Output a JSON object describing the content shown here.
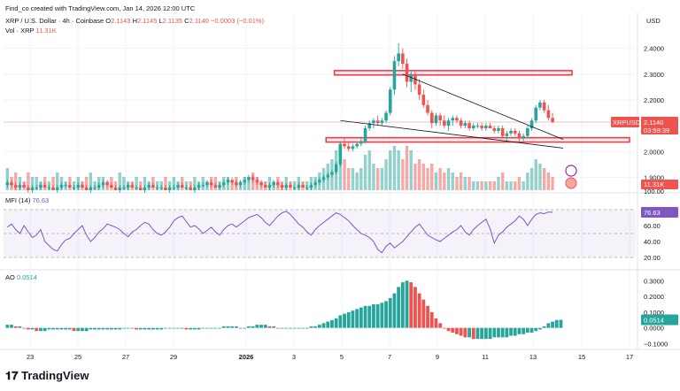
{
  "header": {
    "created_by": "Find_co created with TradingView.com, Jan 14, 2026 12:00 UTC",
    "symbol": "XRP / U.S. Dollar · 4h · Coinbase",
    "ohlc_o_label": "O",
    "ohlc_o": "2.1143",
    "ohlc_h_label": "H",
    "ohlc_h": "2.1145",
    "ohlc_l_label": "L",
    "ohlc_l": "2.1135",
    "ohlc_c_label": "C",
    "ohlc_c": "2.1140",
    "change": "−0.0003 (−0.01%)",
    "vol_label": "Vol · XRP",
    "vol_value": "11.31K",
    "currency": "USD"
  },
  "price_tag": {
    "symbol": "XRPUSD",
    "price": "2.1140",
    "countdown": "03:59:39"
  },
  "volume_tag": "11.31K",
  "volume_scale_label": "100.00",
  "mfi": {
    "label": "MFI (14)",
    "value": "76.63",
    "ticks": [
      "60.00",
      "40.00",
      "20.00"
    ]
  },
  "ao": {
    "label": "AO",
    "value": "0.0514",
    "ticks": [
      "0.3000",
      "0.2000",
      "0.1000",
      "0.0000",
      "−0.1000"
    ]
  },
  "price_ticks": [
    "2.4000",
    "2.3000",
    "2.2000",
    "2.1000",
    "2.0000",
    "1.9000"
  ],
  "x_ticks": [
    "23",
    "25",
    "27",
    "29",
    "2026",
    "3",
    "5",
    "7",
    "9",
    "11",
    "13",
    "15",
    "17"
  ],
  "brand": "TradingView",
  "colors": {
    "up": "#26a69a",
    "down": "#ef5350",
    "mfi_line": "#7e57c2",
    "zone": "#f23645"
  },
  "chart_data": {
    "type": "candlestick",
    "symbol": "XRPUSD",
    "timeframe": "4h",
    "x_start": "Dec 22",
    "ylim": [
      1.85,
      2.45
    ],
    "candles_ohlc": [
      [
        1.87,
        1.89,
        1.86,
        1.88
      ],
      [
        1.88,
        1.89,
        1.86,
        1.87
      ],
      [
        1.87,
        1.88,
        1.85,
        1.86
      ],
      [
        1.86,
        1.88,
        1.85,
        1.87
      ],
      [
        1.87,
        1.88,
        1.86,
        1.86
      ],
      [
        1.86,
        1.87,
        1.84,
        1.85
      ],
      [
        1.85,
        1.87,
        1.84,
        1.86
      ],
      [
        1.86,
        1.87,
        1.85,
        1.86
      ],
      [
        1.86,
        1.88,
        1.85,
        1.87
      ],
      [
        1.87,
        1.88,
        1.86,
        1.86
      ],
      [
        1.86,
        1.87,
        1.85,
        1.86
      ],
      [
        1.86,
        1.87,
        1.85,
        1.85
      ],
      [
        1.85,
        1.87,
        1.84,
        1.86
      ],
      [
        1.86,
        1.88,
        1.85,
        1.87
      ],
      [
        1.87,
        1.88,
        1.86,
        1.87
      ],
      [
        1.87,
        1.88,
        1.86,
        1.86
      ],
      [
        1.86,
        1.87,
        1.85,
        1.86
      ],
      [
        1.86,
        1.88,
        1.85,
        1.87
      ],
      [
        1.87,
        1.88,
        1.86,
        1.86
      ],
      [
        1.86,
        1.87,
        1.85,
        1.85
      ],
      [
        1.85,
        1.87,
        1.84,
        1.86
      ],
      [
        1.86,
        1.87,
        1.85,
        1.86
      ],
      [
        1.86,
        1.88,
        1.85,
        1.87
      ],
      [
        1.87,
        1.89,
        1.86,
        1.88
      ],
      [
        1.88,
        1.89,
        1.86,
        1.87
      ],
      [
        1.87,
        1.88,
        1.86,
        1.86
      ],
      [
        1.86,
        1.87,
        1.85,
        1.85
      ],
      [
        1.85,
        1.87,
        1.84,
        1.86
      ],
      [
        1.86,
        1.87,
        1.85,
        1.86
      ],
      [
        1.86,
        1.88,
        1.85,
        1.87
      ],
      [
        1.87,
        1.88,
        1.86,
        1.86
      ],
      [
        1.86,
        1.87,
        1.85,
        1.86
      ],
      [
        1.86,
        1.87,
        1.85,
        1.85
      ],
      [
        1.85,
        1.87,
        1.84,
        1.86
      ],
      [
        1.86,
        1.88,
        1.85,
        1.87
      ],
      [
        1.87,
        1.88,
        1.86,
        1.86
      ],
      [
        1.86,
        1.87,
        1.85,
        1.86
      ],
      [
        1.86,
        1.87,
        1.85,
        1.86
      ],
      [
        1.86,
        1.87,
        1.85,
        1.85
      ],
      [
        1.85,
        1.87,
        1.84,
        1.86
      ],
      [
        1.86,
        1.87,
        1.85,
        1.86
      ],
      [
        1.86,
        1.88,
        1.85,
        1.87
      ],
      [
        1.87,
        1.88,
        1.86,
        1.86
      ],
      [
        1.86,
        1.87,
        1.85,
        1.86
      ],
      [
        1.86,
        1.87,
        1.85,
        1.85
      ],
      [
        1.85,
        1.87,
        1.84,
        1.86
      ],
      [
        1.86,
        1.88,
        1.85,
        1.87
      ],
      [
        1.87,
        1.88,
        1.86,
        1.87
      ],
      [
        1.87,
        1.89,
        1.86,
        1.88
      ],
      [
        1.88,
        1.89,
        1.86,
        1.87
      ],
      [
        1.87,
        1.88,
        1.86,
        1.86
      ],
      [
        1.86,
        1.88,
        1.85,
        1.87
      ],
      [
        1.87,
        1.89,
        1.86,
        1.88
      ],
      [
        1.88,
        1.9,
        1.87,
        1.89
      ],
      [
        1.89,
        1.9,
        1.87,
        1.88
      ],
      [
        1.88,
        1.89,
        1.86,
        1.87
      ],
      [
        1.87,
        1.89,
        1.86,
        1.88
      ],
      [
        1.88,
        1.9,
        1.87,
        1.89
      ],
      [
        1.89,
        1.91,
        1.88,
        1.9
      ],
      [
        1.9,
        1.91,
        1.88,
        1.89
      ],
      [
        1.89,
        1.9,
        1.87,
        1.88
      ],
      [
        1.88,
        1.89,
        1.86,
        1.87
      ],
      [
        1.87,
        1.88,
        1.86,
        1.86
      ],
      [
        1.86,
        1.88,
        1.85,
        1.87
      ],
      [
        1.87,
        1.89,
        1.86,
        1.88
      ],
      [
        1.88,
        1.89,
        1.86,
        1.87
      ],
      [
        1.87,
        1.88,
        1.85,
        1.86
      ],
      [
        1.86,
        1.88,
        1.85,
        1.87
      ],
      [
        1.87,
        1.88,
        1.86,
        1.86
      ],
      [
        1.86,
        1.87,
        1.85,
        1.86
      ],
      [
        1.86,
        1.88,
        1.85,
        1.87
      ],
      [
        1.87,
        1.88,
        1.86,
        1.86
      ],
      [
        1.86,
        1.87,
        1.85,
        1.86
      ],
      [
        1.86,
        1.88,
        1.85,
        1.87
      ],
      [
        1.87,
        1.89,
        1.86,
        1.88
      ],
      [
        1.88,
        1.9,
        1.87,
        1.89
      ],
      [
        1.89,
        1.91,
        1.88,
        1.9
      ],
      [
        1.9,
        1.92,
        1.89,
        1.91
      ],
      [
        1.91,
        1.93,
        1.9,
        1.92
      ],
      [
        1.92,
        1.96,
        1.91,
        1.95
      ],
      [
        1.95,
        2.04,
        1.94,
        2.03
      ],
      [
        2.03,
        2.05,
        2.01,
        2.02
      ],
      [
        2.02,
        2.04,
        2.0,
        2.01
      ],
      [
        2.01,
        2.03,
        2.0,
        2.02
      ],
      [
        2.02,
        2.04,
        2.01,
        2.03
      ],
      [
        2.03,
        2.05,
        2.02,
        2.04
      ],
      [
        2.04,
        2.1,
        2.03,
        2.09
      ],
      [
        2.09,
        2.12,
        2.08,
        2.11
      ],
      [
        2.11,
        2.13,
        2.09,
        2.12
      ],
      [
        2.12,
        2.14,
        2.1,
        2.11
      ],
      [
        2.11,
        2.13,
        2.1,
        2.12
      ],
      [
        2.12,
        2.16,
        2.11,
        2.15
      ],
      [
        2.15,
        2.25,
        2.14,
        2.24
      ],
      [
        2.24,
        2.37,
        2.22,
        2.35
      ],
      [
        2.35,
        2.42,
        2.33,
        2.38
      ],
      [
        2.38,
        2.4,
        2.32,
        2.34
      ],
      [
        2.34,
        2.36,
        2.25,
        2.27
      ],
      [
        2.27,
        2.31,
        2.23,
        2.3
      ],
      [
        2.3,
        2.31,
        2.24,
        2.26
      ],
      [
        2.26,
        2.28,
        2.2,
        2.22
      ],
      [
        2.22,
        2.24,
        2.17,
        2.18
      ],
      [
        2.18,
        2.2,
        2.14,
        2.15
      ],
      [
        2.15,
        2.16,
        2.09,
        2.11
      ],
      [
        2.11,
        2.15,
        2.1,
        2.14
      ],
      [
        2.14,
        2.15,
        2.1,
        2.12
      ],
      [
        2.12,
        2.14,
        2.09,
        2.1
      ],
      [
        2.1,
        2.13,
        2.08,
        2.12
      ],
      [
        2.12,
        2.14,
        2.1,
        2.13
      ],
      [
        2.13,
        2.14,
        2.11,
        2.12
      ],
      [
        2.12,
        2.13,
        2.09,
        2.1
      ],
      [
        2.1,
        2.12,
        2.09,
        2.11
      ],
      [
        2.11,
        2.12,
        2.08,
        2.09
      ],
      [
        2.09,
        2.11,
        2.08,
        2.1
      ],
      [
        2.1,
        2.11,
        2.09,
        2.1
      ],
      [
        2.1,
        2.11,
        2.08,
        2.09
      ],
      [
        2.09,
        2.11,
        2.08,
        2.1
      ],
      [
        2.1,
        2.11,
        2.09,
        2.09
      ],
      [
        2.09,
        2.1,
        2.07,
        2.08
      ],
      [
        2.08,
        2.1,
        2.07,
        2.09
      ],
      [
        2.09,
        2.1,
        2.05,
        2.06
      ],
      [
        2.06,
        2.08,
        2.04,
        2.07
      ],
      [
        2.07,
        2.09,
        2.06,
        2.08
      ],
      [
        2.08,
        2.09,
        2.06,
        2.07
      ],
      [
        2.07,
        2.08,
        2.04,
        2.05
      ],
      [
        2.05,
        2.07,
        2.04,
        2.06
      ],
      [
        2.06,
        2.1,
        2.05,
        2.09
      ],
      [
        2.09,
        2.13,
        2.08,
        2.12
      ],
      [
        2.12,
        2.18,
        2.11,
        2.17
      ],
      [
        2.17,
        2.2,
        2.16,
        2.19
      ],
      [
        2.19,
        2.2,
        2.15,
        2.16
      ],
      [
        2.16,
        2.18,
        2.12,
        2.13
      ],
      [
        2.13,
        2.15,
        2.11,
        2.114
      ]
    ],
    "volume": [
      0.5,
      0.3,
      0.4,
      0.3,
      0.2,
      0.4,
      0.3,
      0.3,
      0.2,
      0.3,
      0.2,
      0.3,
      0.4,
      0.3,
      0.2,
      0.3,
      0.2,
      0.3,
      0.2,
      0.3,
      0.4,
      0.2,
      0.3,
      0.3,
      0.2,
      0.3,
      0.2,
      0.4,
      0.3,
      0.2,
      0.2,
      0.3,
      0.2,
      0.3,
      0.2,
      0.3,
      0.2,
      0.2,
      0.3,
      0.2,
      0.3,
      0.2,
      0.3,
      0.2,
      0.2,
      0.3,
      0.2,
      0.3,
      0.2,
      0.3,
      0.3,
      0.2,
      0.3,
      0.3,
      0.2,
      0.3,
      0.2,
      0.3,
      0.3,
      0.4,
      0.3,
      0.2,
      0.2,
      0.3,
      0.2,
      0.3,
      0.2,
      0.3,
      0.2,
      0.2,
      0.3,
      0.2,
      0.2,
      0.3,
      0.3,
      0.4,
      0.5,
      0.6,
      0.7,
      0.9,
      1.0,
      0.7,
      0.5,
      0.5,
      0.4,
      0.5,
      0.8,
      0.9,
      0.6,
      0.5,
      0.5,
      0.7,
      0.9,
      1.0,
      0.9,
      0.7,
      1.0,
      0.9,
      0.6,
      0.7,
      0.6,
      0.5,
      0.6,
      0.4,
      0.5,
      0.4,
      0.5,
      0.4,
      0.3,
      0.4,
      0.3,
      0.3,
      0.2,
      0.2,
      0.2,
      0.2,
      0.2,
      0.2,
      0.3,
      0.4,
      0.2,
      0.2,
      0.2,
      0.3,
      0.2,
      0.4,
      0.5,
      0.7,
      0.6,
      0.5,
      0.4,
      0.3
    ],
    "mfi": [
      58,
      62,
      55,
      50,
      60,
      52,
      45,
      48,
      55,
      40,
      35,
      30,
      28,
      36,
      42,
      44,
      50,
      55,
      60,
      48,
      40,
      45,
      52,
      56,
      62,
      60,
      58,
      55,
      50,
      46,
      52,
      55,
      60,
      64,
      62,
      55,
      50,
      48,
      52,
      58,
      66,
      70,
      72,
      65,
      58,
      60,
      56,
      50,
      54,
      58,
      52,
      48,
      55,
      60,
      62,
      58,
      62,
      66,
      70,
      72,
      74,
      70,
      64,
      60,
      66,
      72,
      76,
      78,
      74,
      68,
      62,
      58,
      52,
      48,
      55,
      60,
      64,
      68,
      72,
      76,
      74,
      70,
      66,
      60,
      55,
      50,
      48,
      45,
      40,
      30,
      26,
      34,
      38,
      32,
      36,
      40,
      46,
      52,
      58,
      62,
      55,
      48,
      45,
      42,
      40,
      44,
      48,
      52,
      55,
      60,
      52,
      48,
      55,
      60,
      64,
      68,
      56,
      38,
      48,
      52,
      58,
      62,
      66,
      72,
      68,
      60,
      68,
      74,
      76,
      75,
      77,
      76.63
    ],
    "ao": [
      0.02,
      0.02,
      0.01,
      0.01,
      0.0,
      -0.01,
      -0.01,
      -0.02,
      -0.02,
      -0.02,
      -0.01,
      -0.01,
      -0.01,
      -0.01,
      -0.01,
      -0.01,
      -0.02,
      -0.02,
      -0.02,
      -0.02,
      -0.01,
      -0.01,
      -0.01,
      -0.01,
      -0.01,
      -0.01,
      -0.01,
      -0.01,
      0.0,
      0.0,
      0.0,
      -0.01,
      -0.01,
      -0.01,
      -0.01,
      -0.01,
      -0.01,
      -0.01,
      0.0,
      0.0,
      0.0,
      0.0,
      0.0,
      -0.01,
      -0.01,
      -0.01,
      -0.01,
      0.0,
      0.0,
      0.0,
      0.0,
      0.0,
      0.01,
      0.01,
      0.01,
      0.01,
      0.0,
      0.0,
      0.01,
      0.01,
      0.02,
      0.02,
      0.02,
      0.01,
      0.01,
      0.0,
      0.0,
      0.0,
      0.0,
      0.0,
      0.0,
      0.0,
      0.0,
      0.01,
      0.01,
      0.02,
      0.03,
      0.04,
      0.05,
      0.06,
      0.08,
      0.09,
      0.1,
      0.11,
      0.12,
      0.13,
      0.14,
      0.14,
      0.15,
      0.15,
      0.16,
      0.17,
      0.19,
      0.22,
      0.26,
      0.29,
      0.3,
      0.29,
      0.26,
      0.22,
      0.18,
      0.14,
      0.1,
      0.06,
      0.03,
      0.0,
      -0.02,
      -0.03,
      -0.04,
      -0.05,
      -0.06,
      -0.06,
      -0.07,
      -0.07,
      -0.07,
      -0.07,
      -0.07,
      -0.06,
      -0.06,
      -0.06,
      -0.06,
      -0.05,
      -0.05,
      -0.04,
      -0.04,
      -0.03,
      -0.03,
      -0.02,
      -0.01,
      0.01,
      0.03,
      0.04,
      0.05,
      0.0514
    ],
    "resistance_zone": [
      2.3,
      2.31
    ],
    "support_zone": [
      2.04,
      2.05
    ],
    "trendline_upper": [
      [
        95,
        2.3
      ],
      [
        131,
        2.04
      ]
    ],
    "trendline_lower": [
      [
        80,
        2.12
      ],
      [
        131,
        2.02
      ]
    ]
  }
}
